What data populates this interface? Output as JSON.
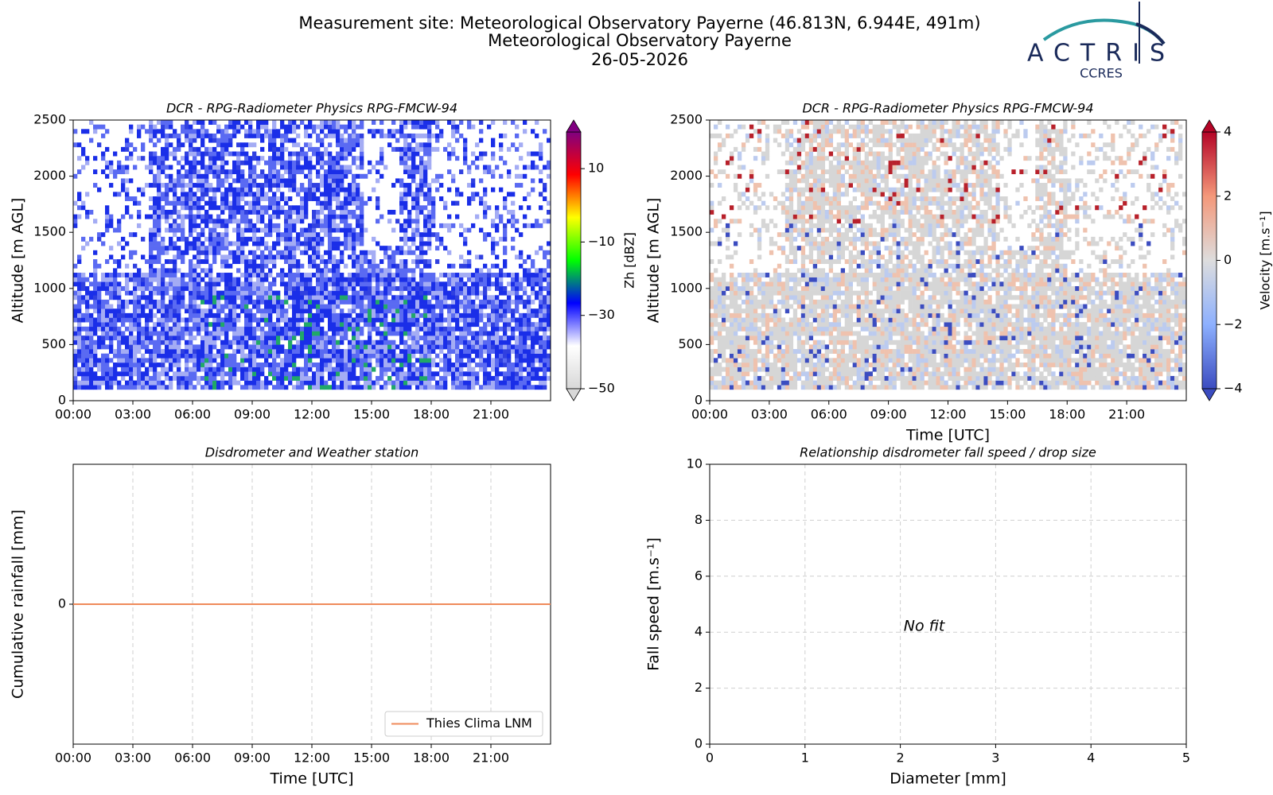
{
  "header": {
    "title": [
      "Measurement site: Meteorological Observatory Payerne (46.813N, 6.944E, 491m)",
      "Meteorological Observatory Payerne",
      "26-05-2026"
    ],
    "logo": "ACTRIS",
    "logo_sub": "CCRES"
  },
  "chart_data": [
    {
      "type": "heatmap",
      "title": "DCR - RPG-Radiometer Physics RPG-FMCW-94",
      "y_label": "Altitude [m AGL]",
      "xlim": [
        0,
        24
      ],
      "xticks": [
        {
          "value": 0,
          "label": "00:00"
        },
        {
          "value": 3,
          "label": "03:00"
        },
        {
          "value": 6,
          "label": "06:00"
        },
        {
          "value": 9,
          "label": "09:00"
        },
        {
          "value": 12,
          "label": "12:00"
        },
        {
          "value": 15,
          "label": "15:00"
        },
        {
          "value": 18,
          "label": "18:00"
        },
        {
          "value": 21,
          "label": "21:00"
        }
      ],
      "ylim": [
        0,
        2500
      ],
      "yticks": [
        0,
        500,
        1000,
        1500,
        2000,
        2500
      ],
      "colorbar": {
        "label": "Zh [dBZ]",
        "lim": [
          -50,
          20
        ],
        "ticks": [
          {
            "value": -50,
            "label": "−50"
          },
          {
            "value": -30,
            "label": "−30"
          },
          {
            "value": -10,
            "label": "−10"
          },
          10
        ],
        "colors": [
          "#d8d8d8",
          "#ffffff",
          "#0000ff",
          "#00ff00",
          "#ffff00",
          "#ff0000",
          "#800080"
        ]
      }
    },
    {
      "type": "heatmap",
      "title": "DCR - RPG-Radiometer Physics RPG-FMCW-94",
      "x_label": "Time [UTC]",
      "y_label": "Altitude [m AGL]",
      "xlim": [
        0,
        24
      ],
      "xticks": [
        {
          "value": 0,
          "label": "00:00"
        },
        {
          "value": 3,
          "label": "03:00"
        },
        {
          "value": 6,
          "label": "06:00"
        },
        {
          "value": 9,
          "label": "09:00"
        },
        {
          "value": 12,
          "label": "12:00"
        },
        {
          "value": 15,
          "label": "15:00"
        },
        {
          "value": 18,
          "label": "18:00"
        },
        {
          "value": 21,
          "label": "21:00"
        }
      ],
      "ylim": [
        0,
        2500
      ],
      "yticks": [
        0,
        500,
        1000,
        1500,
        2000,
        2500
      ],
      "colorbar": {
        "label": "Velocity [m.s⁻¹]",
        "lim": [
          -4,
          4
        ],
        "ticks": [
          {
            "value": -4,
            "label": "−4"
          },
          {
            "value": -2,
            "label": "−2"
          },
          0,
          2,
          4
        ],
        "colors": [
          "#3b4cc0",
          "#8db0fe",
          "#dddddd",
          "#f4987a",
          "#b40426"
        ]
      }
    },
    {
      "type": "line",
      "title": "Disdrometer and Weather station",
      "x_label": "Time [UTC]",
      "y_label": "Cumulative rainfall [mm]",
      "xlim": [
        0,
        24
      ],
      "xticks": [
        {
          "value": 0,
          "label": "00:00"
        },
        {
          "value": 3,
          "label": "03:00"
        },
        {
          "value": 6,
          "label": "06:00"
        },
        {
          "value": 9,
          "label": "09:00"
        },
        {
          "value": 12,
          "label": "12:00"
        },
        {
          "value": 15,
          "label": "15:00"
        },
        {
          "value": 18,
          "label": "18:00"
        },
        {
          "value": 21,
          "label": "21:00"
        }
      ],
      "ylim": [
        -1,
        1
      ],
      "yticks": [
        0
      ],
      "grid": true,
      "legend": "lower right",
      "series": [
        {
          "name": "Thies Clima LNM",
          "color": "#ef8a5a",
          "x": [
            0,
            24
          ],
          "values": [
            0,
            0
          ]
        }
      ]
    },
    {
      "type": "scatter",
      "title": "Relationship disdrometer fall speed / drop size",
      "x_label": "Diameter [mm]",
      "y_label": "Fall speed [m.s⁻¹]",
      "xlim": [
        0,
        5
      ],
      "xticks": [
        0,
        1,
        2,
        3,
        4,
        5
      ],
      "ylim": [
        0,
        10
      ],
      "yticks": [
        0,
        2,
        4,
        6,
        8,
        10
      ],
      "grid": true,
      "annotation": "No fit"
    }
  ]
}
